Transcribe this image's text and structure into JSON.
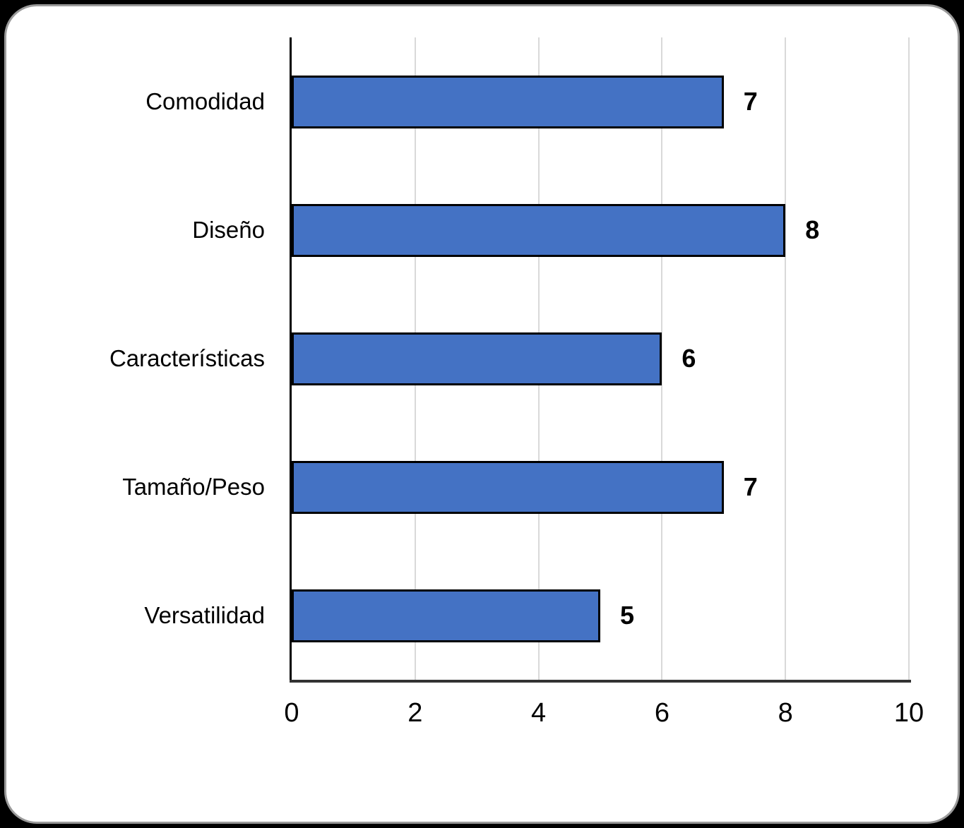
{
  "chart_data": {
    "type": "bar",
    "orientation": "horizontal",
    "title": "",
    "categories": [
      "Comodidad",
      "Diseño",
      "Características",
      "Tamaño/Peso",
      "Versatilidad"
    ],
    "values": [
      7,
      8,
      6,
      7,
      5
    ],
    "data_labels": [
      "7",
      "8",
      "6",
      "7",
      "5"
    ],
    "xlabel": "",
    "ylabel": "",
    "xlim": [
      0,
      10
    ],
    "xticks": [
      "0",
      "2",
      "4",
      "6",
      "8",
      "10"
    ],
    "grid": "vertical-only",
    "legend": "none",
    "colors": {
      "bar_fill": "#4472C4",
      "bar_border": "#000000",
      "gridline": "#D9D9D9",
      "y_axis_line": "#000000",
      "x_axis_line": "#333333",
      "text": "#000000",
      "card_background": "#FFFFFF",
      "card_border": "#9A9A9A",
      "page_background": "#000000"
    }
  }
}
